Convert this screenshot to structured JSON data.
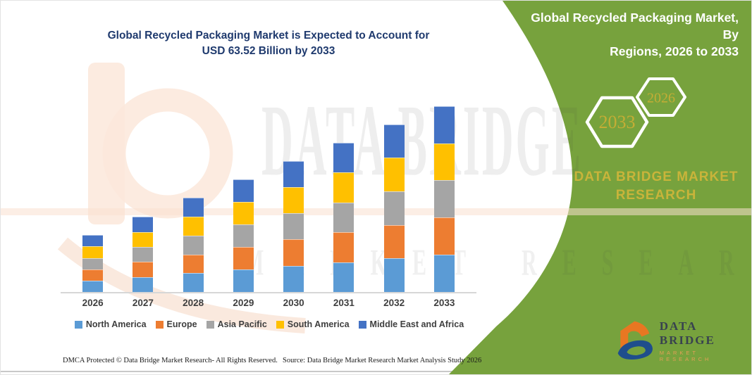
{
  "colors": {
    "panel_green": "#77a23d",
    "gold_text": "#c9b43a",
    "title_navy": "#1f3a6e",
    "axis_text": "#3f3f3f",
    "watermark_peach": "#fbe7da",
    "logo_orange": "#e87722",
    "logo_blue": "#1f4e8c"
  },
  "chart_data": {
    "type": "bar",
    "stacked": true,
    "title": "Global Recycled Packaging Market is Expected to Account for USD 63.52 Billion by 2033",
    "title_lines": [
      "Global Recycled Packaging Market is Expected to Account for",
      "USD 63.52 Billion by 2033"
    ],
    "unit": "USD Billion",
    "categories": [
      "2026",
      "2027",
      "2028",
      "2029",
      "2030",
      "2031",
      "2032",
      "2033"
    ],
    "series": [
      {
        "name": "North America",
        "color": "#5b9bd5",
        "values": [
          3.88,
          5.13,
          6.42,
          7.67,
          8.96,
          10.21,
          11.46,
          12.72
        ]
      },
      {
        "name": "Europe",
        "color": "#ed7d31",
        "values": [
          3.88,
          5.13,
          6.42,
          7.67,
          8.96,
          10.21,
          11.46,
          12.7
        ]
      },
      {
        "name": "Asia Pacific",
        "color": "#a5a5a5",
        "values": [
          3.88,
          5.13,
          6.42,
          7.67,
          8.96,
          10.21,
          11.46,
          12.7
        ]
      },
      {
        "name": "South America",
        "color": "#ffc000",
        "values": [
          3.88,
          5.13,
          6.42,
          7.67,
          8.96,
          10.21,
          11.46,
          12.7
        ]
      },
      {
        "name": "Middle East and Africa",
        "color": "#4472c4",
        "values": [
          3.88,
          5.13,
          6.42,
          7.67,
          8.96,
          10.21,
          11.46,
          12.7
        ]
      }
    ],
    "totals": [
      19.4,
      25.65,
      32.1,
      38.35,
      44.8,
      51.05,
      57.3,
      63.52
    ],
    "ylim": [
      0,
      70
    ],
    "grid": false,
    "y_axis_visible": false,
    "legend_position": "bottom"
  },
  "panel": {
    "title": "Global Recycled Packaging Market, By Regions, 2026 to 2033",
    "title_lines": [
      "Global Recycled Packaging Market, By",
      "Regions, 2026 to 2033"
    ],
    "hexagons": [
      {
        "label": "2033"
      },
      {
        "label": "2026"
      }
    ],
    "brand_lines": [
      "DATA BRIDGE MARKET",
      "RESEARCH"
    ]
  },
  "watermark": {
    "line1": "DATA BRIDGE",
    "line2": "MARKET RESEARCH"
  },
  "logo": {
    "text": "DATA BRIDGE",
    "subtext": "MARKET RESEARCH"
  },
  "footer": {
    "left": "DMCA Protected © Data Bridge Market Research- All Rights Reserved.",
    "right": "Source: Data Bridge Market Research Market Analysis Study 2026"
  }
}
